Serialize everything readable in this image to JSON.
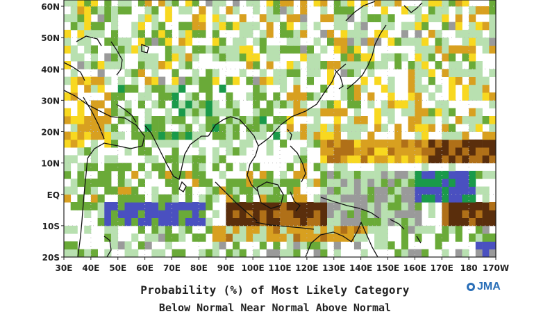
{
  "map": {
    "lat_labels": [
      "60N",
      "50N",
      "40N",
      "30N",
      "20N",
      "10N",
      "EQ",
      "10S",
      "20S"
    ],
    "lon_labels": [
      "30E",
      "40E",
      "50E",
      "60E",
      "70E",
      "80E",
      "90E",
      "100E",
      "110E",
      "120E",
      "130E",
      "140E",
      "150E",
      "160E",
      "170E",
      "180",
      "170W"
    ],
    "lon_range": [
      30,
      190
    ],
    "lat_range": [
      -20,
      62
    ],
    "category_colors": {
      "dark_brown": "#5a2e0c",
      "brown": "#b07018",
      "orange": "#d8a020",
      "yellow": "#f8d820",
      "white": "#ffffff",
      "light_green": "#b8e0b0",
      "green": "#6aaa38",
      "dark_green": "#1a9a4a",
      "gray": "#9a9a9a",
      "blue": "#4a50c0"
    }
  },
  "caption": "Probability (%) of Most Likely Category",
  "caption2": "Below Normal   Near Normal   Above Normal",
  "logo": {
    "text": "JMA"
  }
}
